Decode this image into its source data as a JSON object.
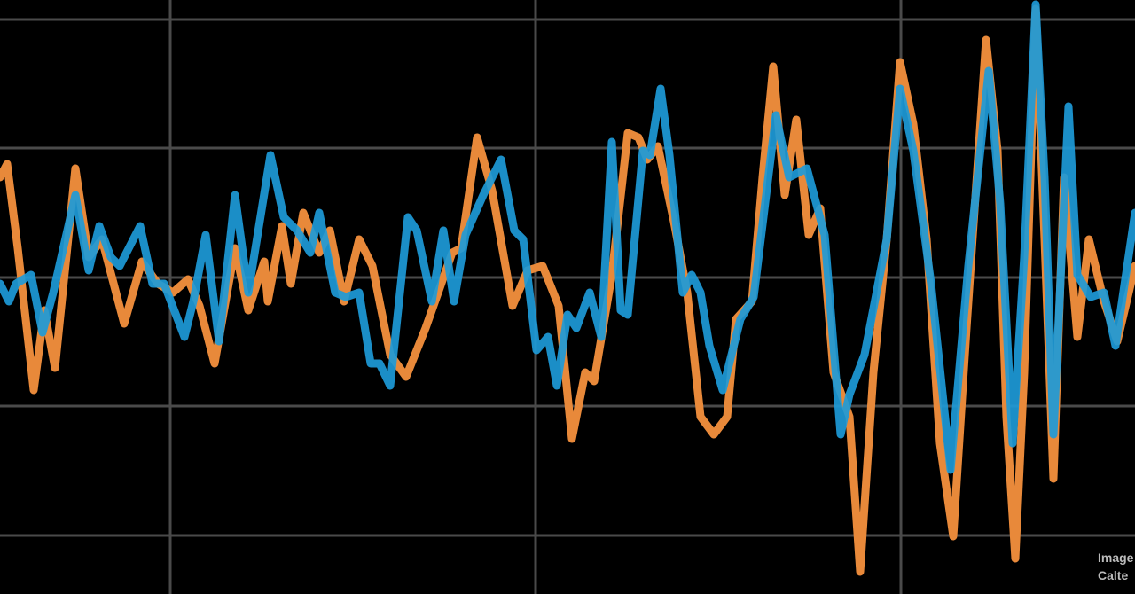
{
  "chart_data": {
    "type": "line",
    "xlim": [
      0,
      1280
    ],
    "xticks": [
      192,
      604,
      1016
    ],
    "ylim": [
      0,
      670
    ],
    "yticks": [
      66,
      212,
      357,
      503,
      648
    ],
    "grid": true,
    "background": "#000000",
    "grid_color": "#4a4a4a",
    "annotations": [
      "Image",
      "Calte"
    ],
    "series": [
      {
        "color": "#e8893a",
        "x": [
          0,
          8,
          20,
          38,
          50,
          62,
          85,
          100,
          115,
          140,
          160,
          178,
          195,
          212,
          225,
          242,
          265,
          280,
          298,
          302,
          318,
          328,
          342,
          360,
          372,
          388,
          405,
          420,
          440,
          458,
          480,
          510,
          520,
          538,
          555,
          578,
          595,
          612,
          630,
          645,
          660,
          670,
          690,
          708,
          720,
          730,
          742,
          760,
          775,
          790,
          805,
          820,
          830,
          848,
          860,
          872,
          885,
          898,
          912,
          925,
          940,
          958,
          970,
          985,
          1000,
          1015,
          1030,
          1045,
          1060,
          1075,
          1090,
          1112,
          1125,
          1135,
          1145,
          1155,
          1168,
          1178,
          1188,
          1200,
          1215,
          1228,
          1245,
          1260,
          1280
        ],
        "values": [
          470,
          485,
          390,
          230,
          320,
          255,
          480,
          380,
          400,
          305,
          375,
          350,
          340,
          355,
          325,
          260,
          390,
          320,
          375,
          330,
          415,
          350,
          430,
          385,
          410,
          330,
          400,
          370,
          270,
          245,
          300,
          385,
          390,
          515,
          455,
          325,
          365,
          370,
          325,
          175,
          250,
          240,
          360,
          520,
          515,
          490,
          505,
          420,
          340,
          200,
          180,
          200,
          310,
          330,
          470,
          595,
          450,
          535,
          405,
          435,
          250,
          200,
          25,
          250,
          400,
          600,
          530,
          400,
          170,
          65,
          300,
          625,
          500,
          200,
          40,
          250,
          660,
          400,
          130,
          470,
          290,
          400,
          330,
          285,
          370
        ]
      },
      {
        "color": "#1d9ad8",
        "x": [
          0,
          10,
          18,
          35,
          48,
          60,
          85,
          100,
          112,
          125,
          135,
          158,
          172,
          185,
          208,
          218,
          232,
          247,
          265,
          280,
          305,
          320,
          335,
          350,
          360,
          378,
          390,
          405,
          418,
          428,
          440,
          460,
          470,
          487,
          500,
          512,
          525,
          545,
          565,
          580,
          590,
          605,
          618,
          628,
          640,
          650,
          665,
          678,
          690,
          700,
          708,
          725,
          733,
          745,
          755,
          770,
          780,
          790,
          800,
          815,
          835,
          850,
          875,
          890,
          910,
          930,
          948,
          958,
          975,
          1000,
          1015,
          1030,
          1050,
          1072,
          1092,
          1115,
          1128,
          1142,
          1155,
          1168,
          1178,
          1188,
          1205,
          1215,
          1230,
          1245,
          1258,
          1280
        ],
        "values": [
          350,
          330,
          350,
          360,
          295,
          340,
          450,
          365,
          415,
          380,
          370,
          415,
          350,
          350,
          290,
          330,
          405,
          285,
          450,
          340,
          495,
          425,
          410,
          385,
          430,
          340,
          335,
          340,
          260,
          260,
          235,
          425,
          410,
          330,
          410,
          330,
          405,
          450,
          490,
          410,
          400,
          275,
          290,
          235,
          315,
          300,
          340,
          290,
          510,
          320,
          315,
          500,
          495,
          570,
          495,
          340,
          360,
          340,
          280,
          230,
          310,
          335,
          540,
          470,
          480,
          405,
          180,
          225,
          270,
          400,
          570,
          500,
          350,
          140,
          370,
          590,
          440,
          170,
          380,
          665,
          470,
          180,
          550,
          360,
          335,
          340,
          280,
          430
        ]
      }
    ]
  }
}
